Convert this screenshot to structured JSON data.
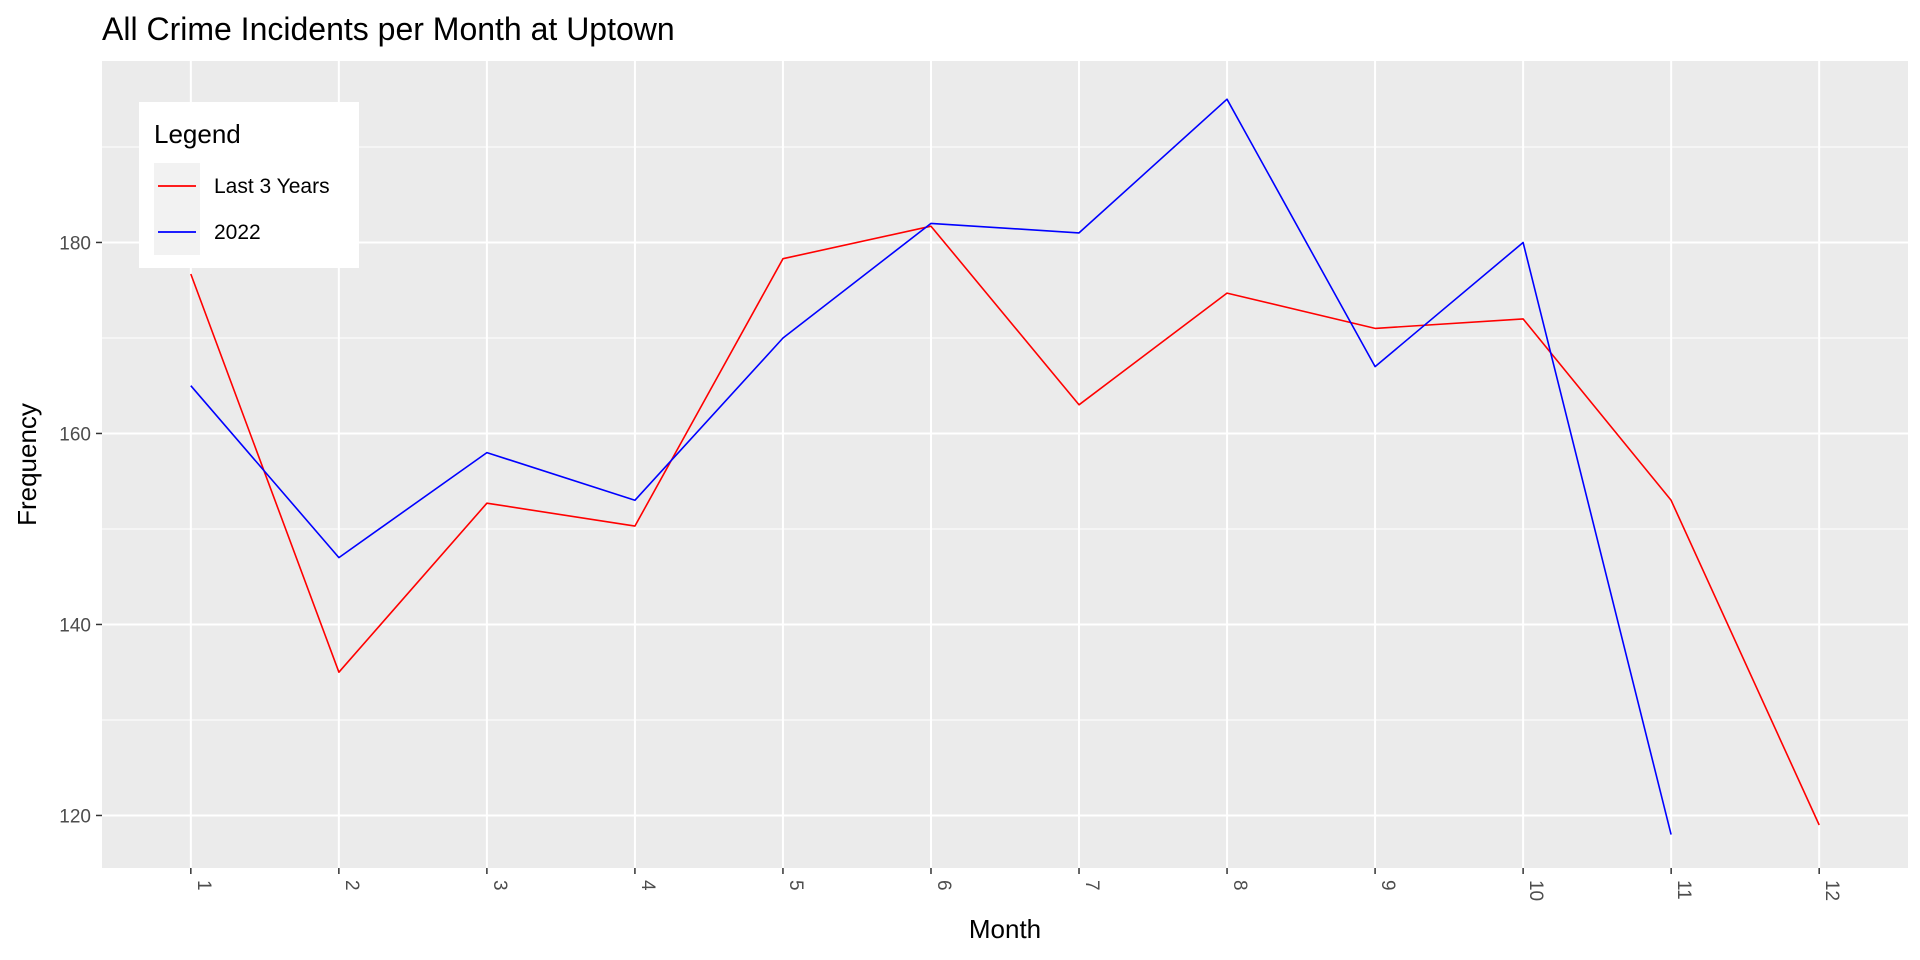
{
  "chart_data": {
    "type": "line",
    "title": "All Crime Incidents per Month at Uptown",
    "xlabel": "Month",
    "ylabel": "Frequency",
    "x": [
      1,
      2,
      3,
      4,
      5,
      6,
      7,
      8,
      9,
      10,
      11,
      12
    ],
    "x_tick_labels": [
      "1",
      "2",
      "3",
      "4",
      "5",
      "6",
      "7",
      "8",
      "9",
      "10",
      "11",
      "12"
    ],
    "xlim": [
      0.4,
      12.6
    ],
    "ylim": [
      114.5,
      199
    ],
    "y_ticks": [
      120,
      140,
      160,
      180
    ],
    "y_tick_labels": [
      "120",
      "140",
      "160",
      "180"
    ],
    "series": [
      {
        "name": "Last 3 Years",
        "color": "#ff0000",
        "values": [
          176.7,
          135,
          152.7,
          150.3,
          178.3,
          181.7,
          163,
          174.7,
          171,
          172,
          153,
          119
        ]
      },
      {
        "name": "2022",
        "color": "#0000ff",
        "values": [
          165,
          147,
          158,
          153,
          170,
          182,
          181,
          195,
          167,
          180,
          118,
          null
        ]
      }
    ],
    "legend": {
      "title": "Legend",
      "position": "top-left inside plot"
    },
    "panel_background": "#ebebeb",
    "grid_color": "#ffffff",
    "grid": true
  }
}
